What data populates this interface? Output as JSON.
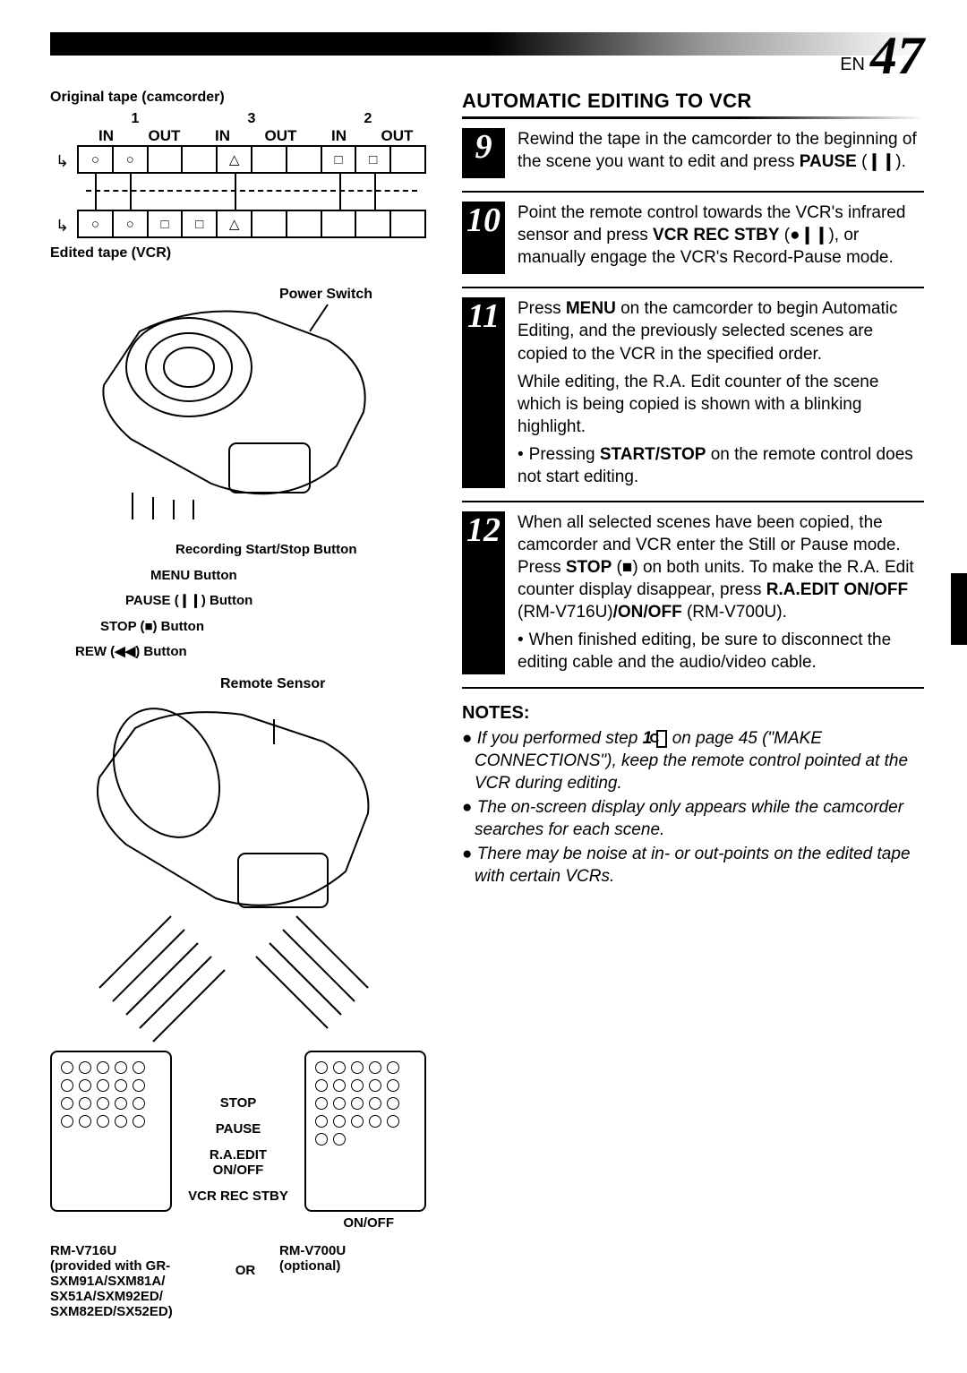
{
  "page": {
    "lang_prefix": "EN",
    "number": "47"
  },
  "tape": {
    "original_label": "Original tape (camcorder)",
    "edited_label": "Edited tape (VCR)",
    "group_numbers": [
      "1",
      "3",
      "2"
    ],
    "inout": [
      "IN",
      "OUT",
      "IN",
      "OUT",
      "IN",
      "OUT"
    ],
    "original_symbols": [
      "○",
      "○",
      "",
      "",
      "△",
      "",
      "",
      "□",
      "□",
      ""
    ],
    "edited_symbols": [
      "○",
      "○",
      "□",
      "□",
      "△",
      "",
      "",
      "",
      "",
      ""
    ]
  },
  "camcorder_callouts": {
    "power_switch": "Power Switch",
    "rec_startstop": "Recording Start/Stop Button",
    "menu": "MENU Button",
    "pause": "PAUSE (❙❙) Button",
    "stop": "STOP (■) Button",
    "rew": "REW (◀◀) Button",
    "remote_sensor": "Remote Sensor"
  },
  "remote": {
    "labels": {
      "stop": "STOP",
      "pause": "PAUSE",
      "raedit": "R.A.EDIT ON/OFF",
      "vcr_rec_stby": "VCR REC STBY",
      "onoff": "ON/OFF"
    },
    "left_model_lines": [
      "RM-V716U",
      "(provided with GR-",
      "SXM91A/SXM81A/",
      "SX51A/SXM92ED/",
      "SXM82ED/SX52ED)"
    ],
    "or": "OR",
    "right_model_lines": [
      "RM-V700U",
      "(optional)"
    ]
  },
  "right": {
    "section_title": "AUTOMATIC EDITING TO VCR",
    "steps": [
      {
        "num": "9",
        "paras": [
          "Rewind the tape in the camcorder to the beginning of the scene you want to edit and press <b>PAUSE</b> (<b>❙❙</b>)."
        ],
        "bullets": []
      },
      {
        "num": "10",
        "paras": [
          "Point the remote control towards the VCR's infrared sensor and press <b>VCR REC STBY</b> (<b>●❙❙</b>), or manually engage the VCR's Record-Pause mode."
        ],
        "bullets": []
      },
      {
        "num": "11",
        "paras": [
          "Press <b>MENU</b> on the camcorder to begin Automatic Editing, and the previously selected scenes are copied to the VCR in the specified order.",
          "While editing, the R.A. Edit counter of the scene which is being copied is shown with a blinking highlight."
        ],
        "bullets": [
          "Pressing <b>START/STOP</b> on the remote control does not start editing."
        ]
      },
      {
        "num": "12",
        "paras": [
          "When all selected scenes have been copied, the camcorder and VCR enter the Still or Pause mode. Press <b>STOP</b> (<b>■</b>) on both units. To make the R.A. Edit counter display disappear, press <b>R.A.EDIT ON/OFF</b> (RM-V716U)<b>/ON/OFF</b> (RM-V700U)."
        ],
        "bullets": [
          "When finished editing, be sure to disconnect the editing cable and the audio/video cable."
        ]
      }
    ],
    "notes_heading": "NOTES:",
    "notes": [
      "If you performed step <b>1</b> <span class=\"boxed-c\">C</span>  on page 45 (\"MAKE CONNECTIONS\"), keep the remote control pointed at the VCR during editing.",
      "The on-screen display only appears while the camcorder searches for each scene.",
      "There may be noise at in- or out-points on the edited tape with certain VCRs."
    ]
  }
}
